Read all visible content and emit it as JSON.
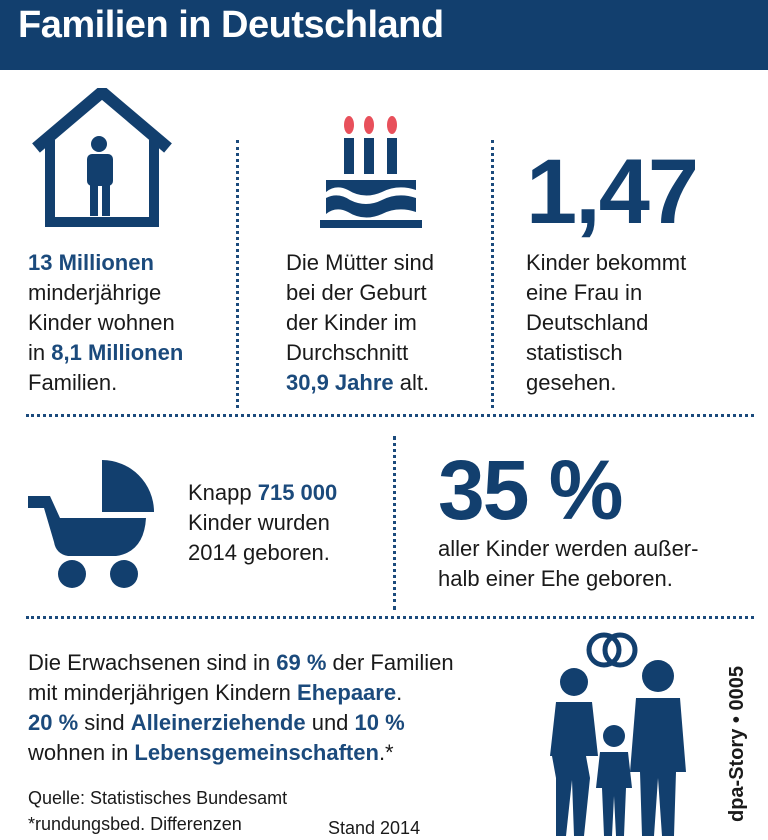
{
  "header": {
    "title": "Familien in Deutschland"
  },
  "panel1": {
    "l1_num": "13 Millionen",
    "l2": "minderjährige",
    "l3": "Kinder wohnen",
    "l4_pre": "in ",
    "l4_num": "8,1 Millionen",
    "l5": "Familien."
  },
  "panel2": {
    "l1": "Die Mütter sind",
    "l2": "bei der Geburt",
    "l3": "der Kinder im",
    "l4": "Durchschnitt",
    "l5_num": "30,9 Jahre",
    "l5_post": " alt."
  },
  "panel3": {
    "big": "1,47",
    "l1": "Kinder bekommt",
    "l2": "eine Frau in",
    "l3": "Deutschland",
    "l4": "statistisch",
    "l5": "gesehen."
  },
  "panel4": {
    "l1_pre": "Knapp ",
    "l1_num": "715 000",
    "l2": "Kinder wurden",
    "l3": "2014 geboren."
  },
  "panel5": {
    "big": "35 %",
    "l1": "aller Kinder werden außer-",
    "l2": "halb einer Ehe geboren."
  },
  "panel6": {
    "l1_pre": "Die Erwachsenen sind in ",
    "l1_num": "69 %",
    "l1_post": " der Familien",
    "l2_pre": "mit minderjährigen Kindern ",
    "l2_hl": "Ehepaare",
    "l2_post": ".",
    "l3_num": "20 %",
    "l3_mid": " sind ",
    "l3_hl": "Alleinerziehende",
    "l3_mid2": " und ",
    "l3_num2": "10 %",
    "l4_pre": "wohnen in ",
    "l4_hl": "Lebensgemeinschaften",
    "l4_post": ".*"
  },
  "footer": {
    "source": "Quelle: Statistisches Bundesamt",
    "note": "*rundungsbed. Differenzen",
    "date": "Stand 2014",
    "credit": "dpa-Story • 0005"
  },
  "colors": {
    "navy": "#123f6e",
    "highlight": "#1b4a7c",
    "flame": "#e8505b"
  }
}
